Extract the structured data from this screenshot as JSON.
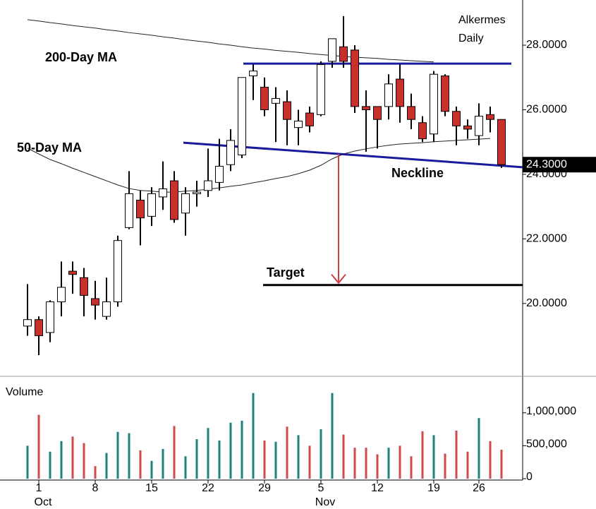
{
  "chart_data": {
    "type": "candlestick",
    "title": [
      "Alkermes",
      "Daily"
    ],
    "categories": [
      null,
      "1",
      null,
      null,
      null,
      null,
      "8",
      null,
      null,
      null,
      null,
      "15",
      null,
      null,
      null,
      null,
      "22",
      null,
      null,
      null,
      null,
      "29",
      null,
      null,
      null,
      null,
      "5",
      null,
      null,
      null,
      null,
      "12",
      null,
      null,
      null,
      null,
      "19",
      null,
      null,
      null,
      "26",
      null,
      null
    ],
    "months": [
      null,
      "Oct",
      null,
      null,
      null,
      null,
      null,
      null,
      null,
      null,
      null,
      null,
      null,
      null,
      null,
      null,
      null,
      null,
      null,
      null,
      null,
      null,
      null,
      null,
      null,
      null,
      "Nov",
      null,
      null,
      null,
      null,
      null,
      null,
      null,
      null,
      null,
      null,
      null,
      null,
      null,
      null,
      null,
      null
    ],
    "open": [
      19.3,
      19.5,
      19.1,
      20.05,
      21.0,
      20.8,
      20.15,
      19.6,
      20.05,
      22.35,
      23.2,
      22.7,
      23.3,
      23.8,
      22.8,
      23.4,
      23.5,
      23.75,
      24.3,
      24.6,
      27.05,
      26.7,
      26.2,
      26.25,
      25.45,
      25.9,
      25.85,
      27.5,
      27.95,
      27.85,
      26.1,
      26.1,
      26.1,
      26.95,
      26.1,
      25.6,
      25.25,
      27.05,
      25.95,
      25.5,
      25.2,
      25.85,
      25.7
    ],
    "high": [
      20.6,
      19.6,
      20.1,
      21.3,
      21.3,
      21.1,
      20.7,
      20.8,
      22.1,
      24.1,
      23.5,
      23.6,
      24.4,
      24.1,
      23.6,
      23.8,
      24.8,
      25.1,
      25.4,
      27.0,
      27.4,
      27.0,
      26.7,
      26.6,
      26.0,
      26.1,
      27.5,
      28.2,
      28.9,
      28.0,
      26.6,
      26.1,
      27.1,
      27.4,
      26.5,
      25.8,
      27.2,
      27.1,
      26.1,
      25.7,
      26.2,
      26.1,
      25.7
    ],
    "low": [
      19.0,
      18.4,
      18.8,
      19.6,
      20.3,
      19.6,
      19.5,
      19.5,
      19.9,
      22.3,
      21.8,
      22.4,
      22.9,
      22.5,
      22.1,
      23.0,
      23.3,
      23.5,
      24.1,
      24.5,
      26.3,
      25.8,
      25.0,
      24.9,
      24.9,
      25.3,
      25.8,
      27.3,
      27.3,
      25.9,
      24.7,
      24.8,
      25.7,
      25.6,
      25.4,
      25.0,
      25.0,
      25.8,
      24.9,
      25.1,
      24.9,
      25.3,
      24.2
    ],
    "close": [
      19.5,
      19.0,
      20.05,
      20.5,
      20.9,
      20.25,
      19.95,
      20.05,
      21.95,
      23.4,
      22.65,
      23.4,
      23.55,
      22.6,
      23.4,
      23.45,
      23.8,
      24.25,
      25.05,
      27.0,
      27.2,
      26.0,
      26.35,
      25.7,
      25.65,
      25.5,
      27.4,
      28.2,
      27.5,
      26.1,
      26.0,
      25.7,
      26.8,
      26.1,
      25.7,
      25.1,
      27.1,
      25.95,
      25.5,
      25.4,
      25.8,
      25.7,
      24.3
    ],
    "up_color": "#ffffff",
    "down_color": "#c8302c",
    "moving_averages": [
      {
        "name": "200-Day MA",
        "color": "#222222",
        "values": [
          28.79,
          28.75,
          28.7,
          28.66,
          28.61,
          28.57,
          28.53,
          28.48,
          28.44,
          28.39,
          28.35,
          28.31,
          28.26,
          28.22,
          28.17,
          28.13,
          28.09,
          28.04,
          28.0,
          27.95,
          27.91,
          27.88,
          27.84,
          27.81,
          27.78,
          27.74,
          27.71,
          27.68,
          27.65,
          27.63,
          27.61,
          27.59,
          27.56,
          27.54,
          27.52,
          27.5,
          27.48,
          null,
          null,
          null,
          null,
          null,
          null
        ]
      },
      {
        "name": "50-Day MA",
        "color": "#222222",
        "values": [
          24.81,
          24.63,
          24.46,
          24.33,
          24.19,
          24.06,
          23.93,
          23.8,
          23.67,
          23.56,
          23.5,
          23.48,
          23.45,
          23.45,
          23.48,
          23.5,
          23.54,
          23.58,
          23.63,
          23.67,
          23.74,
          23.8,
          23.87,
          23.93,
          24.02,
          24.13,
          24.28,
          24.48,
          24.63,
          24.72,
          24.79,
          24.85,
          24.9,
          24.94,
          24.96,
          24.98,
          25.01,
          25.03,
          25.05,
          25.07,
          25.09,
          25.11,
          null
        ]
      }
    ],
    "resistance": 27.43,
    "neckline": {
      "label": "Neckline",
      "values": [
        24.98,
        24.22
      ]
    },
    "target": {
      "label": "Target",
      "value": 20.57
    },
    "trend_color": "#1a1a9c",
    "arrow_color": "#d04040",
    "last_price": {
      "value": 24.3,
      "label": "24.3000"
    },
    "ylim": [
      17.81,
      29.4
    ],
    "yticks": [
      {
        "value": 20,
        "label": "20.0000"
      },
      {
        "value": 22,
        "label": "22.0000"
      },
      {
        "value": 24,
        "label": "24.0000"
      },
      {
        "value": 26,
        "label": "26.0000"
      },
      {
        "value": 28,
        "label": "28.0000"
      }
    ],
    "volume": {
      "label": "Volume",
      "up_color": "#1a8080",
      "down_color": "#d04848",
      "values": [
        500000,
        970000,
        410000,
        570000,
        640000,
        540000,
        190000,
        390000,
        710000,
        690000,
        430000,
        270000,
        450000,
        800000,
        340000,
        600000,
        770000,
        580000,
        850000,
        880000,
        1300000,
        580000,
        560000,
        790000,
        660000,
        500000,
        750000,
        1300000,
        670000,
        470000,
        470000,
        370000,
        470000,
        500000,
        340000,
        720000,
        660000,
        380000,
        730000,
        410000,
        920000,
        570000,
        440000
      ],
      "ylim": [
        0,
        1480000
      ],
      "yticks": [
        0,
        {
          "value": 500000,
          "label": "500,000"
        },
        {
          "value": 1000000,
          "label": "1,000,000"
        }
      ]
    }
  }
}
